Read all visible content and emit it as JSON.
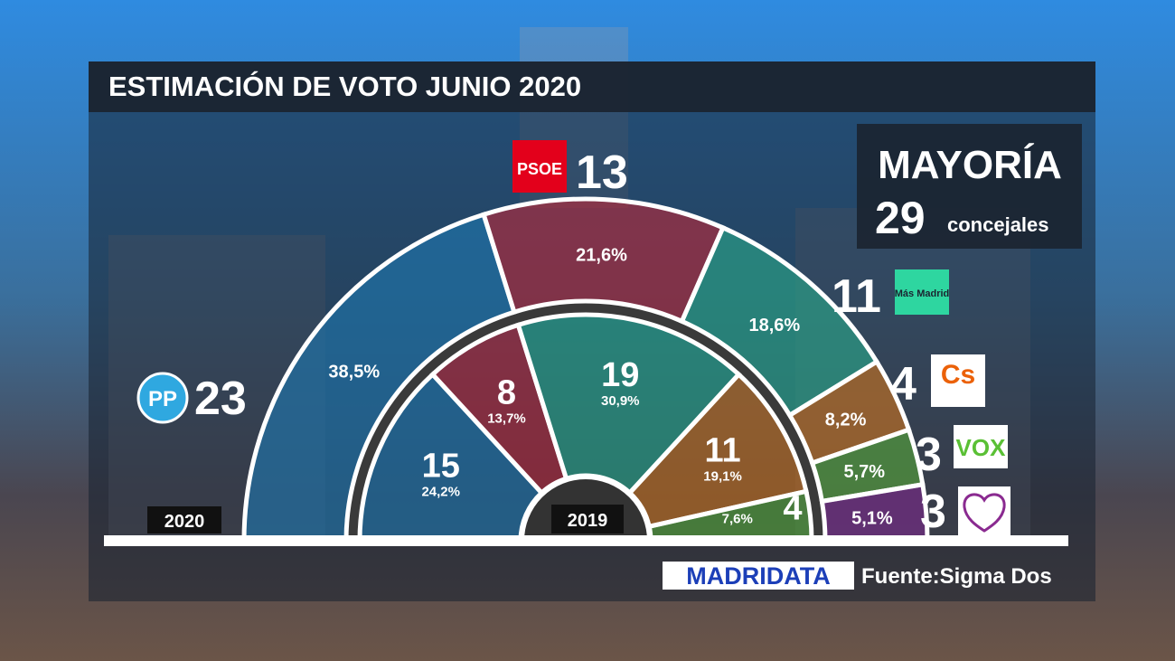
{
  "chart_data": {
    "type": "hemicycle",
    "title": "ESTIMACIÓN DE VOTO JUNIO 2020",
    "majority_label": "MAYORÍA",
    "majority": 29,
    "majority_unit": "concejales",
    "categories": [
      "PP",
      "PSOE",
      "Más Madrid",
      "Cs",
      "VOX",
      null
    ],
    "colors": [
      "#1f78b0",
      "#b8283a",
      "#2aa88a",
      "#c9731e",
      "#56a63a",
      "#7a2a8c"
    ],
    "series": [
      {
        "name": "2020",
        "values": [
          23,
          13,
          11,
          4,
          3,
          3
        ],
        "percents": [
          "38,5%",
          "21,6%",
          "18,6%",
          "8,2%",
          "5,7%",
          "5,1%"
        ]
      },
      {
        "name": "2019",
        "values": [
          15,
          8,
          19,
          11,
          4,
          null
        ],
        "percents": [
          "24,2%",
          "13,7%",
          "30,9%",
          "19,1%",
          "7,6%",
          null
        ]
      }
    ],
    "brand": "MADRIDATA",
    "source": "Fuente:Sigma Dos"
  }
}
